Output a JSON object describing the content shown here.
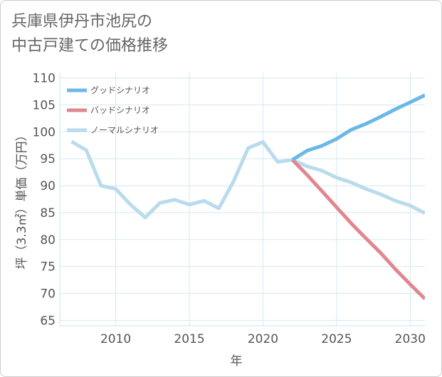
{
  "chart_data": {
    "type": "line",
    "title_lines": [
      "兵庫県伊丹市池尻の",
      "中古戸建ての価格推移"
    ],
    "xlabel": "年",
    "ylabel": "坪（3.3㎡）単価（万円）",
    "xlim": [
      2006.2,
      2031
    ],
    "ylim": [
      64,
      111
    ],
    "x_ticks": [
      2010,
      2015,
      2020,
      2025,
      2030
    ],
    "y_ticks": [
      65,
      70,
      75,
      80,
      85,
      90,
      95,
      100,
      105,
      110
    ],
    "legend_position": "top-left",
    "series": [
      {
        "name": "グッドシナリオ",
        "color": "#6bb8e8",
        "x": [
          2022,
          2023,
          2024,
          2025,
          2026,
          2027,
          2028,
          2029,
          2030,
          2031
        ],
        "values": [
          94.8,
          96.5,
          97.4,
          98.7,
          100.4,
          101.5,
          102.8,
          104.2,
          105.5,
          106.8
        ]
      },
      {
        "name": "バッドシナリオ",
        "color": "#e0878f",
        "x": [
          2022,
          2023,
          2024,
          2025,
          2026,
          2027,
          2028,
          2029,
          2030,
          2031
        ],
        "values": [
          94.8,
          92.0,
          89.0,
          86.0,
          83.0,
          80.2,
          77.5,
          74.5,
          71.7,
          69.0
        ]
      },
      {
        "name": "ノーマルシナリオ",
        "color": "#b9dbec",
        "x": [
          2007,
          2008,
          2009,
          2010,
          2011,
          2012,
          2013,
          2014,
          2015,
          2016,
          2017,
          2018,
          2019,
          2020,
          2021,
          2022,
          2023,
          2024,
          2025,
          2026,
          2027,
          2028,
          2029,
          2030,
          2031
        ],
        "values": [
          98.2,
          96.6,
          90.0,
          89.4,
          86.5,
          84.1,
          86.8,
          87.4,
          86.5,
          87.2,
          85.8,
          90.8,
          97.0,
          98.1,
          94.4,
          94.8,
          93.6,
          92.8,
          91.5,
          90.6,
          89.4,
          88.4,
          87.2,
          86.3,
          84.9
        ]
      }
    ]
  }
}
